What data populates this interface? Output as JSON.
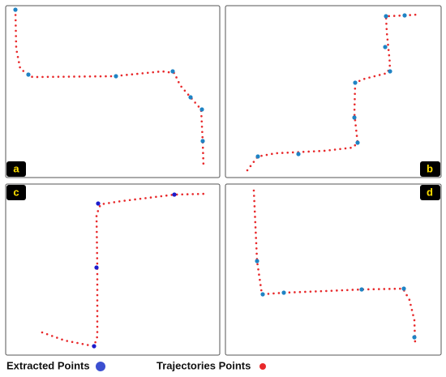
{
  "panels": [
    {
      "label": "a"
    },
    {
      "label": "b"
    },
    {
      "label": "c"
    },
    {
      "label": "d"
    }
  ],
  "legend": [
    {
      "label": "Extracted Points"
    },
    {
      "label": "Trajectories Points"
    }
  ]
}
